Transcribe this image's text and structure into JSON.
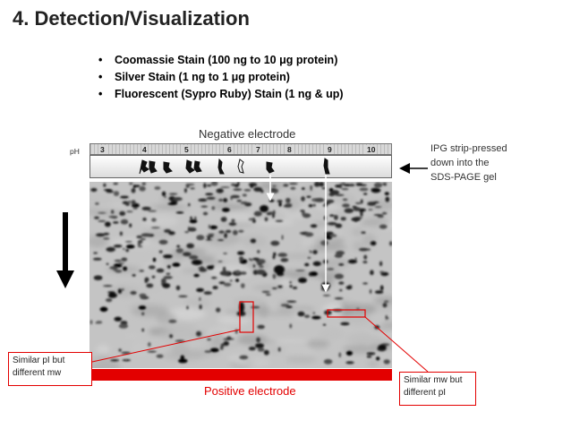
{
  "title": "4. Detection/Visualization",
  "bullets": [
    "Coomassie Stain (100 ng to 10 μg protein)",
    "Silver Stain (1 ng to 1 μg protein)",
    "Fluorescent (Sypro Ruby) Stain (1 ng & up)"
  ],
  "negative_electrode": "Negative electrode",
  "positive_electrode": "Positive electrode",
  "ph_label": "pH",
  "ph_ticks": [
    "3",
    "4",
    "5",
    "6",
    "7",
    "8",
    "9",
    "10"
  ],
  "ipg_note": "IPG strip-pressed down into the SDS-PAGE gel",
  "note_left": "Similar pI but different mw",
  "note_right": "Similar mw but different pI",
  "colors": {
    "electrode_positive": "#e30000",
    "annotation": "#e30000",
    "gel_background": "#c2c2c2"
  }
}
